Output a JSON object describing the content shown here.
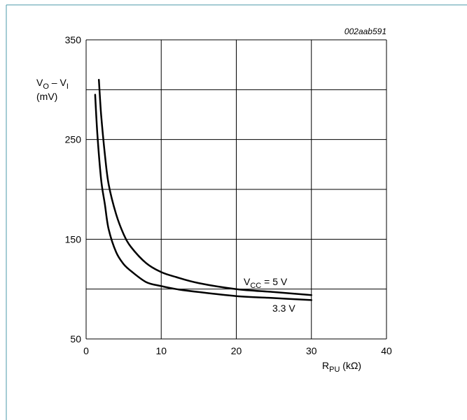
{
  "chart_data": {
    "type": "line",
    "figure_id": "002aab591",
    "ylabel": {
      "main": "V",
      "sub1": "O",
      "mid": " – V",
      "sub2": "I",
      "unit": "(mV)"
    },
    "xlabel": {
      "main": "R",
      "sub": "PU",
      "unit": " (kΩ)"
    },
    "xlim": [
      0,
      40
    ],
    "ylim": [
      50,
      350
    ],
    "x_ticks": [
      0,
      10,
      20,
      30,
      40
    ],
    "y_ticks": [
      50,
      150,
      250,
      350
    ],
    "x_grid": [
      0,
      10,
      20,
      30,
      40
    ],
    "y_grid": [
      50,
      100,
      150,
      200,
      250,
      300,
      350
    ],
    "grid": true,
    "series": [
      {
        "name": "VCC = 5 V",
        "label": {
          "main": "V",
          "sub": "CC",
          "rest": " = 5 V"
        },
        "x": [
          1.7,
          2,
          2.5,
          3,
          4,
          5,
          6,
          8,
          10,
          12,
          15,
          20,
          25,
          30
        ],
        "y": [
          310,
          275,
          235,
          205,
          175,
          155,
          142,
          126,
          117,
          112,
          106,
          100,
          97,
          94
        ]
      },
      {
        "name": "3.3 V",
        "label": {
          "main": "3.3 V"
        },
        "x": [
          1.2,
          1.5,
          2,
          2.5,
          3,
          4,
          5,
          6,
          8,
          10,
          12,
          15,
          20,
          25,
          30
        ],
        "y": [
          295,
          255,
          210,
          185,
          160,
          137,
          125,
          118,
          107,
          103,
          100,
          97,
          93,
          91,
          89
        ]
      }
    ]
  }
}
